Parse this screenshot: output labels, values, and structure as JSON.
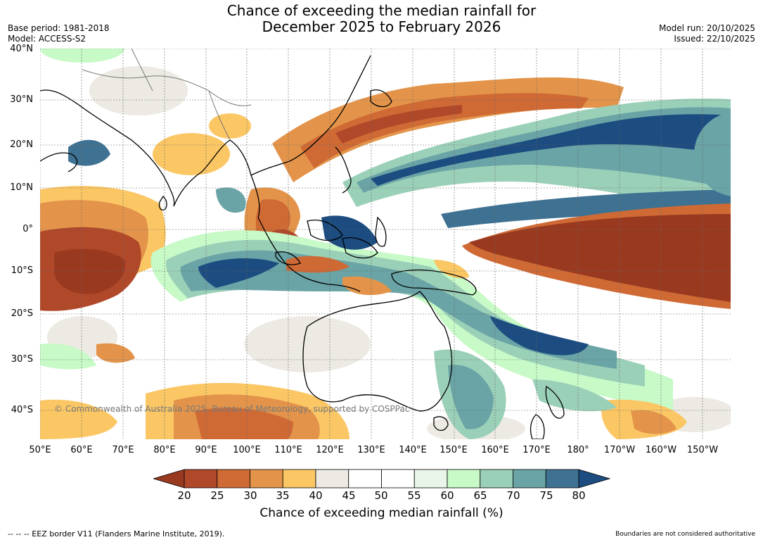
{
  "title_line1": "Chance of exceeding the median rainfall for",
  "title_line2": "December 2025 to February 2026",
  "base_period": "Base period: 1981-2018",
  "model": "Model: ACCESS-S2",
  "model_run": "Model run: 20/10/2025",
  "issued": "Issued: 22/10/2025",
  "copyright": "© Commonwealth of Australia 2025, Bureau of Meteorology, supported by COSPPac",
  "footer_left": "--  --  -- EEZ border V11 (Flanders Marine Institute, 2019).",
  "footer_right": "Boundaries are not considered authoritative",
  "lat_labels": [
    "40°N",
    "30°N",
    "20°N",
    "10°N",
    "0°",
    "10°S",
    "20°S",
    "30°S",
    "40°S"
  ],
  "lon_labels": [
    "50°E",
    "60°E",
    "70°E",
    "80°E",
    "90°E",
    "100°E",
    "110°E",
    "120°E",
    "130°E",
    "140°E",
    "150°E",
    "160°E",
    "170°E",
    "180°",
    "170°W",
    "160°W",
    "150°W"
  ],
  "colorbar": {
    "label": "Chance of exceeding median rainfall (%)",
    "ticks": [
      "20",
      "25",
      "30",
      "35",
      "40",
      "45",
      "50",
      "55",
      "60",
      "65",
      "70",
      "75",
      "80"
    ],
    "colors": [
      "#993a20",
      "#b0482a",
      "#cf6a35",
      "#e3944a",
      "#fbc765",
      "#edeae4",
      "#ffffff",
      "#ffffff",
      "#e8f5e8",
      "#c7fac7",
      "#9bd0b8",
      "#6aa4a6",
      "#3f7292",
      "#1c4c80"
    ],
    "under_color": "#993a20",
    "over_color": "#1c4c80"
  }
}
